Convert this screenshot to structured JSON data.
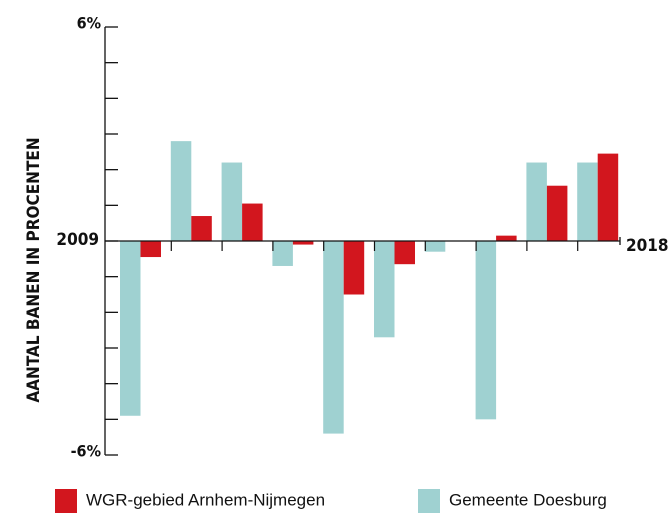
{
  "chart_data": {
    "type": "bar",
    "y_axis_label": "AANTAL BANEN IN PROCENTEN",
    "x_start_label": "2009",
    "x_end_label": "2018",
    "categories": [
      null,
      null,
      null,
      null,
      null,
      null,
      null,
      null,
      null,
      null
    ],
    "series": [
      {
        "name": "Gemeente Doesburg",
        "color": "#9fd1d1",
        "values": [
          -4.9,
          2.8,
          2.2,
          -0.7,
          -5.4,
          -2.7,
          -0.3,
          -5.0,
          2.2,
          2.2
        ]
      },
      {
        "name": "WGR-gebied Arnhem-Nijmegen",
        "color": "#d2161e",
        "values": [
          -0.45,
          0.7,
          1.05,
          -0.1,
          -1.5,
          -0.65,
          0,
          0.15,
          1.55,
          2.45
        ]
      }
    ],
    "legend_order": [
      1,
      0
    ],
    "ylim": [
      -6,
      6
    ],
    "yticks": [
      {
        "value": 6,
        "label": "6%"
      },
      {
        "value": -6,
        "label": "-6%"
      }
    ],
    "minor_yticks": [
      -5,
      -4,
      -3,
      -2,
      -1,
      0,
      1,
      2,
      3,
      4,
      5
    ]
  }
}
